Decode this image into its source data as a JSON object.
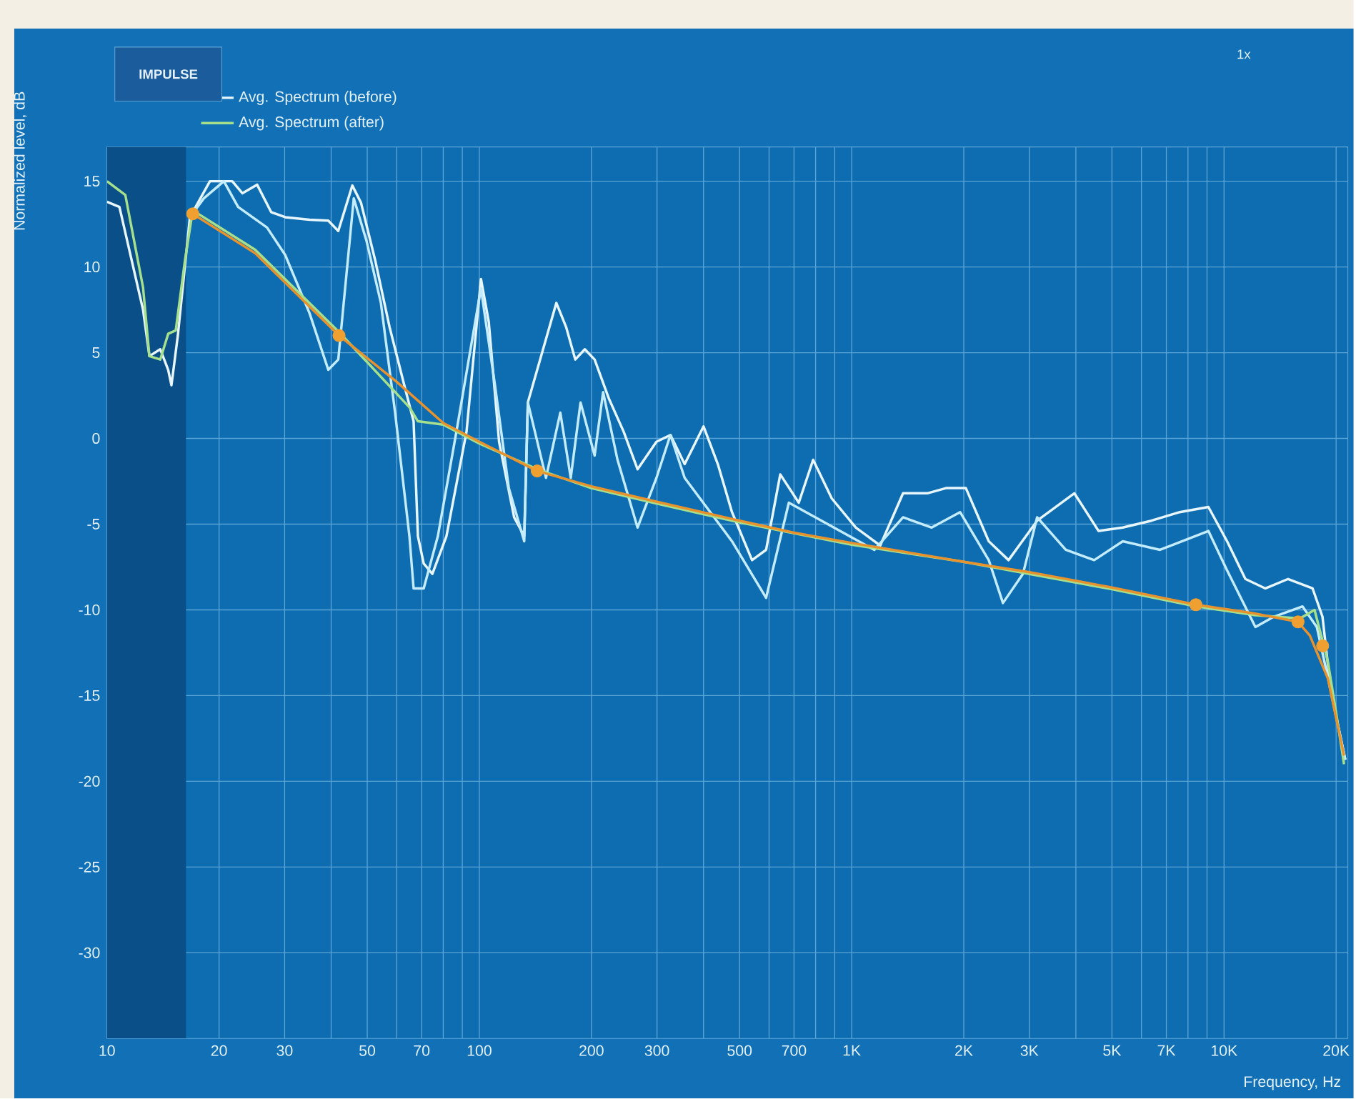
{
  "chart_data": {
    "type": "line",
    "xlabel": "Frequency, Hz",
    "ylabel": "Normalized level, dB",
    "annotations": [
      "IMPULSE",
      "1x"
    ],
    "log": "x",
    "grid": true,
    "legend": "top left",
    "xlim": [
      10,
      21500
    ],
    "ylim": [
      -35,
      17
    ],
    "xticks": [
      10,
      20,
      30,
      {
        "value": 40,
        "label": null
      },
      50,
      {
        "value": 60,
        "label": null
      },
      70,
      {
        "value": 80,
        "label": null
      },
      {
        "value": 90,
        "label": null
      },
      100,
      200,
      300,
      {
        "value": 400,
        "label": null
      },
      500,
      {
        "value": 600,
        "label": null
      },
      700,
      {
        "value": 800,
        "label": null
      },
      {
        "value": 900,
        "label": null
      },
      {
        "value": 1000,
        "label": "1K"
      },
      {
        "value": 2000,
        "label": "2K"
      },
      {
        "value": 3000,
        "label": "3K"
      },
      {
        "value": 4000,
        "label": null
      },
      {
        "value": 5000,
        "label": "5K"
      },
      {
        "value": 6000,
        "label": null
      },
      {
        "value": 7000,
        "label": "7K"
      },
      {
        "value": 8000,
        "label": null
      },
      {
        "value": 9000,
        "label": null
      },
      {
        "value": 10000,
        "label": "10K"
      },
      {
        "value": 20000,
        "label": "20K"
      }
    ],
    "yticks": [
      -30,
      -25,
      -20,
      -15,
      -10,
      -5,
      0,
      5,
      10,
      15
    ],
    "bands": [
      {
        "axis": "x",
        "from": 10,
        "to": 16.3,
        "color": "#0a4f88"
      }
    ],
    "series": [
      {
        "name": "Avg. Spectrum (before)",
        "color": "#e8f6ff",
        "x": [
          10,
          10.8,
          12.5,
          13,
          13.9,
          14.6,
          14.9,
          15.5,
          16.7,
          18.9,
          21.7,
          23.1,
          25.3,
          27.6,
          30.1,
          35,
          39.3,
          41.8,
          45.6,
          48.1,
          52.5,
          57.4,
          62.7,
          66.6,
          68.4,
          70.9,
          74.8,
          81.6,
          92.4,
          101,
          106,
          113,
          124,
          132,
          135,
          161,
          171,
          181,
          192,
          204,
          223,
          244,
          266,
          299,
          326,
          356,
          400,
          437,
          477,
          540,
          589,
          643,
          721,
          788,
          884,
          1026,
          1193,
          1374,
          1597,
          1791,
          2026,
          2334,
          2638,
          3148,
          3963,
          4603,
          5346,
          6380,
          7605,
          9078,
          10190,
          11410,
          12910,
          14860,
          17290,
          18380,
          19380,
          21170
        ],
        "values": [
          13.8,
          13.5,
          7.5,
          4.8,
          5.2,
          4,
          3.1,
          6,
          12.9,
          15,
          15,
          14.3,
          14.8,
          13.2,
          12.9,
          12.75,
          12.7,
          12.1,
          14.75,
          13.75,
          10.4,
          6.5,
          3.2,
          1,
          -5.7,
          -7.3,
          -7.9,
          -5.7,
          0.4,
          9.3,
          6.8,
          -0.2,
          -4.6,
          -5.7,
          2.1,
          7.9,
          6.5,
          4.6,
          5.2,
          4.6,
          2.3,
          0.4,
          -1.8,
          -0.2,
          0.2,
          -1.5,
          0.7,
          -1.5,
          -4.3,
          -7.1,
          -6.5,
          -2.1,
          -3.75,
          -1.25,
          -3.5,
          -5.2,
          -6.25,
          -3.2,
          -3.2,
          -2.9,
          -2.9,
          -6,
          -7.1,
          -4.8,
          -3.2,
          -5.4,
          -5.2,
          -4.8,
          -4.3,
          -4,
          -6,
          -8.2,
          -8.75,
          -8.2,
          -8.75,
          -10.4,
          -14.8,
          -18.75
        ]
      },
      {
        "color": "#c4ecff",
        "x": [
          16.7,
          18.2,
          20.6,
          22.5,
          26.9,
          30.1,
          35,
          39.3,
          41.8,
          46,
          49.8,
          54.4,
          59.4,
          64.9,
          66.6,
          70.9,
          77.4,
          86.8,
          101,
          110,
          120,
          132,
          135,
          151,
          165,
          176,
          187,
          204,
          215,
          235,
          266,
          299,
          326,
          356,
          477,
          589,
          678,
          1150,
          1374,
          1640,
          1955,
          2334,
          2548,
          2884,
          3148,
          3758,
          4480,
          5346,
          6730,
          9078,
          10190,
          12140,
          13610,
          16250,
          17750,
          19380,
          21170
        ],
        "values": [
          12.9,
          14,
          15,
          13.5,
          12.3,
          10.7,
          7.3,
          4,
          4.6,
          14,
          11.5,
          7.9,
          1.5,
          -5.7,
          -8.75,
          -8.75,
          -5.7,
          0.4,
          8.75,
          3.2,
          -2.9,
          -6,
          2.1,
          -2.3,
          1.5,
          -2.3,
          2.1,
          -1,
          2.7,
          -1.25,
          -5.2,
          -2.3,
          0.2,
          -2.3,
          -6,
          -9.3,
          -3.75,
          -6.5,
          -4.6,
          -5.2,
          -4.3,
          -7.1,
          -9.6,
          -7.9,
          -4.6,
          -6.5,
          -7.1,
          -6,
          -6.5,
          -5.4,
          -7.7,
          -11,
          -10.4,
          -9.8,
          -11,
          -14.8,
          -18.75
        ]
      },
      {
        "name": "Avg. Spectrum (after)",
        "color": "#a6e08c",
        "x": [
          10,
          11.2,
          12.5,
          13,
          13.9,
          14.6,
          15.3,
          16.2,
          17,
          25,
          42,
          65,
          68.4,
          80,
          100,
          143,
          200,
          300,
          500,
          1000,
          2000,
          5000,
          8400,
          12000,
          16000,
          17500,
          19000,
          20000,
          21000
        ],
        "values": [
          15,
          14.2,
          8.8,
          4.8,
          4.6,
          6.1,
          6.3,
          10.4,
          13.3,
          11,
          6.2,
          1.8,
          1,
          0.8,
          -0.3,
          -1.8,
          -2.9,
          -3.8,
          -4.9,
          -6.2,
          -7.2,
          -8.8,
          -9.8,
          -10.3,
          -10.5,
          -10,
          -13,
          -16,
          -19
        ]
      },
      {
        "color": "#e8922e",
        "x": [
          17,
          25,
          42,
          60,
          80,
          100,
          143,
          200,
          300,
          500,
          700,
          1000,
          2000,
          3000,
          5000,
          8400,
          12000,
          15800,
          17000,
          19000,
          21000
        ],
        "values": [
          13.1,
          10.8,
          6,
          3.3,
          0.9,
          -0.2,
          -1.9,
          -2.8,
          -3.7,
          -4.8,
          -5.5,
          -6.1,
          -7.2,
          -7.8,
          -8.7,
          -9.7,
          -10.2,
          -10.7,
          -11.5,
          -14,
          -18.5
        ]
      },
      {
        "type": "scatter",
        "marker": "circle",
        "color": "#f0a030",
        "x": [
          17,
          42,
          143,
          8400,
          15800,
          18400
        ],
        "values": [
          13.1,
          6,
          -1.9,
          -9.7,
          -10.7,
          -12.1
        ]
      }
    ]
  }
}
